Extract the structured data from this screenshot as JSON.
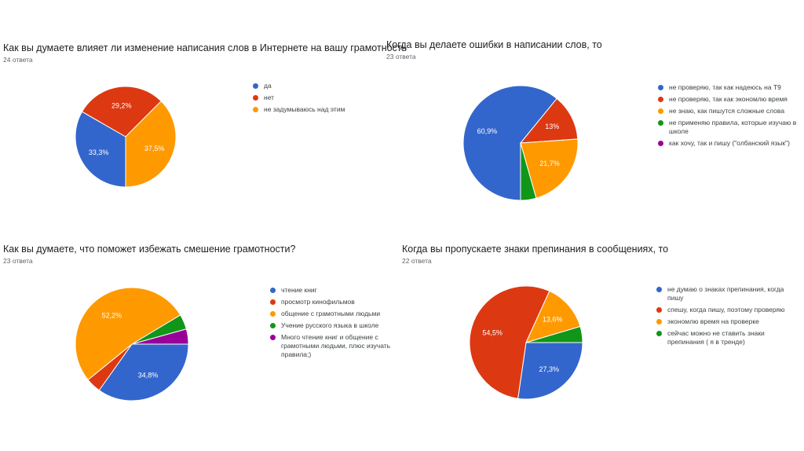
{
  "colors": {
    "blue": "#3366cc",
    "red": "#dc3912",
    "orange": "#ff9900",
    "green": "#109618",
    "purple": "#990099"
  },
  "chart_data": [
    {
      "type": "pie",
      "title": "Как вы думаете влияет ли изменение написания слов в Интернете на вашу грамотность",
      "count_label": "24 ответа",
      "legend_position": "right",
      "slices": [
        {
          "label": "да",
          "value": 33.3,
          "value_label": "33,3%",
          "color": "#3366cc"
        },
        {
          "label": "нет",
          "value": 29.2,
          "value_label": "29,2%",
          "color": "#dc3912"
        },
        {
          "label": "не задумываюсь над этим",
          "value": 37.5,
          "value_label": "37,5%",
          "color": "#ff9900"
        }
      ]
    },
    {
      "type": "pie",
      "title": "Когда вы делаете ошибки в написании слов, то",
      "count_label": "23 ответа",
      "legend_position": "right",
      "slices": [
        {
          "label": "не проверяю, так как надеюсь на Т9",
          "value": 60.9,
          "value_label": "60,9%",
          "color": "#3366cc"
        },
        {
          "label": "не проверяю, так как экономлю время",
          "value": 13.0,
          "value_label": "13%",
          "color": "#dc3912"
        },
        {
          "label": "не знаю, как пишутся сложные слова",
          "value": 21.7,
          "value_label": "21,7%",
          "color": "#ff9900"
        },
        {
          "label": "не применяю правила, которые изучаю в школе",
          "value": 4.4,
          "value_label": "",
          "color": "#109618"
        },
        {
          "label": "как хочу, так и пишу (\"олбанский язык\")",
          "value": 0,
          "value_label": "",
          "color": "#990099"
        }
      ]
    },
    {
      "type": "pie",
      "title": "Как вы думаете, что поможет избежать смешение грамотности?",
      "count_label": "23 ответа",
      "legend_position": "right",
      "slices": [
        {
          "label": "чтение книг",
          "value": 34.8,
          "value_label": "34,8%",
          "color": "#3366cc"
        },
        {
          "label": "просмотр кинофильмов",
          "value": 4.3,
          "value_label": "",
          "color": "#dc3912"
        },
        {
          "label": "общение с грамотными людьми",
          "value": 52.2,
          "value_label": "52,2%",
          "color": "#ff9900"
        },
        {
          "label": "Учение русского языка в школе",
          "value": 4.3,
          "value_label": "",
          "color": "#109618"
        },
        {
          "label": "Много чтение книг и общение с грамотными людьми, плюс изучать правила;)",
          "value": 4.3,
          "value_label": "",
          "color": "#990099"
        }
      ]
    },
    {
      "type": "pie",
      "title": "Когда вы пропускаете знаки препинания в сообщениях, то",
      "count_label": "22 ответа",
      "legend_position": "right",
      "slices": [
        {
          "label": "не думаю о знаках препинания, когда пишу",
          "value": 27.3,
          "value_label": "27,3%",
          "color": "#3366cc"
        },
        {
          "label": "спешу, когда пишу, поэтому проверяю",
          "value": 54.5,
          "value_label": "54,5%",
          "color": "#dc3912"
        },
        {
          "label": "экономлю время на проверке",
          "value": 13.6,
          "value_label": "13,6%",
          "color": "#ff9900"
        },
        {
          "label": "сейчас можно не ставить знаки препинания ( я в тренде)",
          "value": 4.6,
          "value_label": "",
          "color": "#109618"
        }
      ]
    }
  ]
}
